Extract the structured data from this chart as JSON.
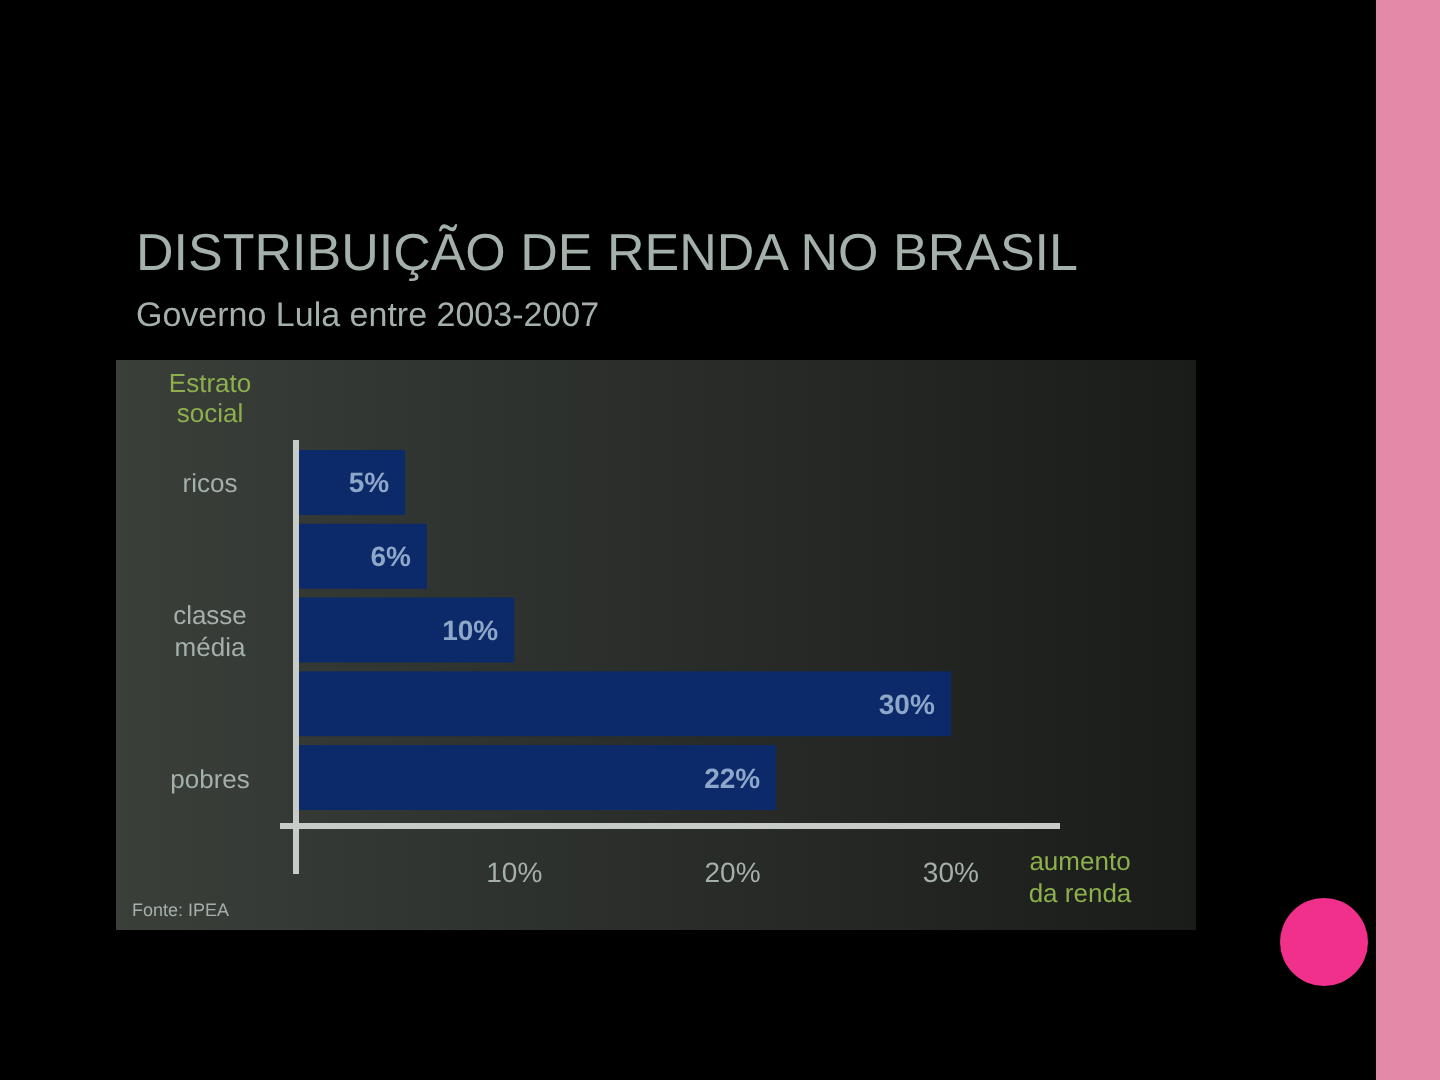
{
  "chart_data": {
    "type": "bar",
    "orientation": "horizontal",
    "title": "DISTRIBUIÇÃO DE RENDA NO BRASIL",
    "subtitle": "Governo Lula entre 2003-2007",
    "ylabel": "Estrato social",
    "xlabel": "aumento da renda",
    "categories": [
      "ricos",
      null,
      "classe média",
      null,
      "pobres"
    ],
    "values": [
      5,
      6,
      10,
      30,
      22
    ],
    "color": "#0c2a6a",
    "value_labels": [
      "5%",
      "6%",
      "10%",
      "30%",
      "22%"
    ],
    "xlim": [
      0,
      35
    ],
    "xticks": [
      {
        "value": 10,
        "label": "10%"
      },
      {
        "value": 20,
        "label": "20%"
      },
      {
        "value": 30,
        "label": "30%"
      }
    ],
    "annotations": [
      "Fonte: IPEA"
    ]
  }
}
